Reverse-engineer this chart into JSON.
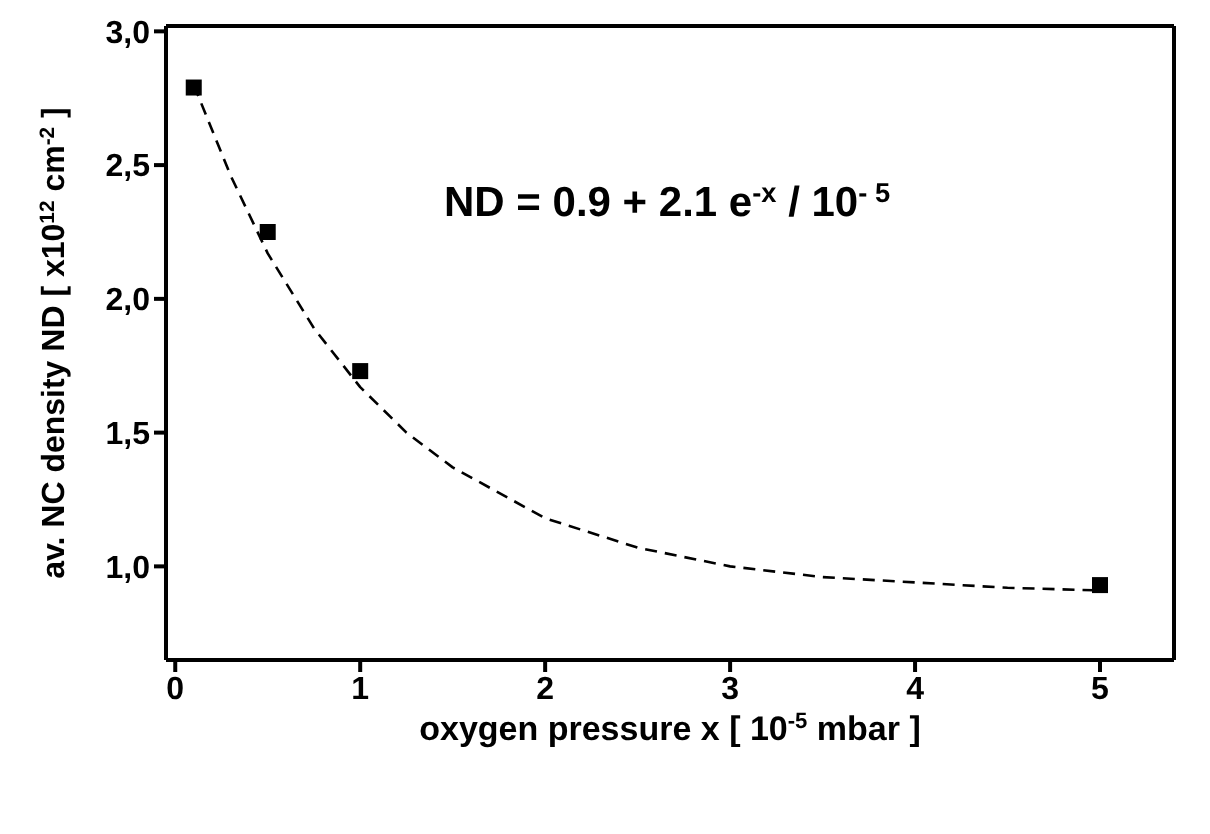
{
  "chart_data": {
    "type": "scatter",
    "xlabel": "oxygen pressure x [ 10$^{-5}$ mbar ]",
    "ylabel": "av. NC density ND [ x10$^{12}$ cm$^{-2}$ ]",
    "annotations": [
      "ND = 0.9 + 2.1 e$^{-x}$ / 10$^{- 5}$"
    ],
    "xlim": [
      -0.05,
      5.4
    ],
    "xticks": [
      0,
      1,
      2,
      3,
      4,
      5
    ],
    "ylim": [
      0.65,
      3.02
    ],
    "yticks": [
      {
        "value": 1,
        "label": "1,0"
      },
      {
        "value": 1.5,
        "label": "1,5"
      },
      {
        "value": 2,
        "label": "2,0"
      },
      {
        "value": 2.5,
        "label": "2,5"
      },
      {
        "value": 3,
        "label": "3,0"
      }
    ],
    "series": [
      {
        "color": "#000000",
        "marker": "square",
        "x": [
          0.1,
          0.5,
          1,
          5
        ],
        "values": [
          2.79,
          2.25,
          1.73,
          0.93
        ]
      },
      {
        "type": "line",
        "color": "#000000",
        "line_style": "dashed",
        "marker": "none",
        "x": [
          0.1,
          0.3,
          0.5,
          0.75,
          1,
          1.25,
          1.5,
          2,
          2.5,
          3,
          3.5,
          4,
          4.5,
          5
        ],
        "values": [
          2.8,
          2.46,
          2.17,
          1.89,
          1.67,
          1.5,
          1.37,
          1.18,
          1.07,
          1.0,
          0.96,
          0.94,
          0.92,
          0.91
        ]
      }
    ]
  }
}
